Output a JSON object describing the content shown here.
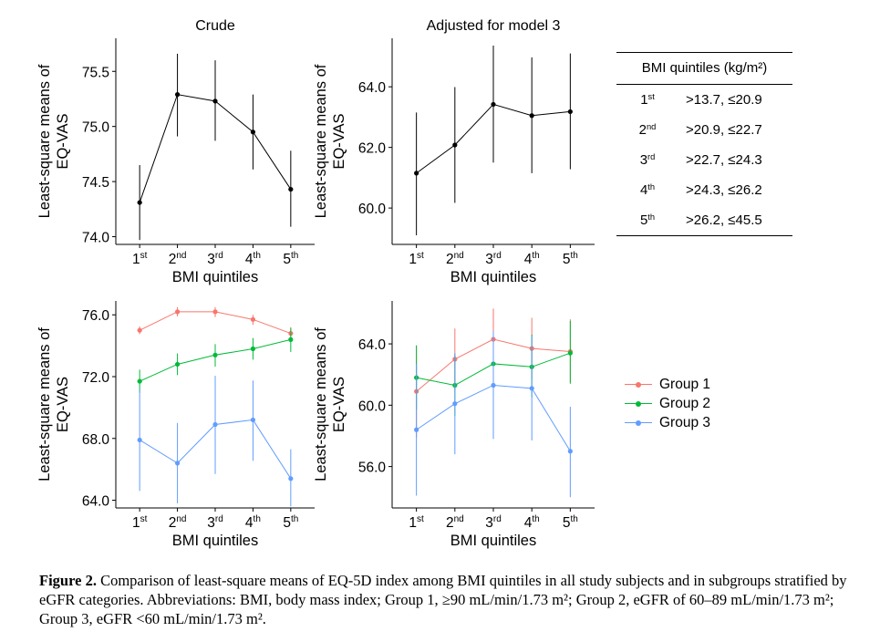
{
  "figure": {
    "caption_label": "Figure 2.",
    "caption_text": "Comparison of least-square means of EQ-5D index among BMI quintiles in all study subjects and in subgroups stratified by eGFR categories. Abbreviations: BMI, body mass index; Group 1, ≥90 mL/min/1.73 m²; Group 2, eGFR of 60–89 mL/min/1.73 m²; Group 3, eGFR <60 mL/min/1.73 m²."
  },
  "table": {
    "header": "BMI quintiles (kg/m²)",
    "rows": [
      {
        "q_num": "1",
        "q_sup": "st",
        "range": ">13.7, ≤20.9"
      },
      {
        "q_num": "2",
        "q_sup": "nd",
        "range": ">20.9, ≤22.7"
      },
      {
        "q_num": "3",
        "q_sup": "rd",
        "range": ">22.7, ≤24.3"
      },
      {
        "q_num": "4",
        "q_sup": "th",
        "range": ">24.3, ≤26.2"
      },
      {
        "q_num": "5",
        "q_sup": "th",
        "range": ">26.2, ≤45.5"
      }
    ]
  },
  "legend": [
    {
      "label": "Group 1",
      "color": "#f8766d"
    },
    {
      "label": "Group 2",
      "color": "#00ba38"
    },
    {
      "label": "Group 3",
      "color": "#619cff"
    }
  ],
  "chart_data": [
    {
      "type": "line",
      "title": "Crude",
      "xlabel": "BMI quintiles",
      "ylabel": "Least-square means of EQ-VAS",
      "categories": [
        {
          "num": "1",
          "sup": "st"
        },
        {
          "num": "2",
          "sup": "nd"
        },
        {
          "num": "3",
          "sup": "rd"
        },
        {
          "num": "4",
          "sup": "th"
        },
        {
          "num": "5",
          "sup": "th"
        }
      ],
      "yticks": [
        "74.0",
        "74.5",
        "75.0",
        "75.5"
      ],
      "ylim": [
        73.93,
        75.8
      ],
      "series": [
        {
          "color": "#000000",
          "values": [
            74.31,
            75.29,
            75.23,
            74.95,
            74.43
          ],
          "lower": [
            73.97,
            74.91,
            74.87,
            74.61,
            74.09
          ],
          "upper": [
            74.65,
            75.66,
            75.6,
            75.29,
            74.78
          ]
        }
      ]
    },
    {
      "type": "line",
      "title": "Adjusted for model 3",
      "xlabel": "BMI quintiles",
      "ylabel": "Least-square means of EQ-VAS",
      "categories": [
        {
          "num": "1",
          "sup": "st"
        },
        {
          "num": "2",
          "sup": "nd"
        },
        {
          "num": "3",
          "sup": "rd"
        },
        {
          "num": "4",
          "sup": "th"
        },
        {
          "num": "5",
          "sup": "th"
        }
      ],
      "yticks": [
        "60.0",
        "62.0",
        "64.0"
      ],
      "ylim": [
        58.8,
        65.6
      ],
      "series": [
        {
          "color": "#000000",
          "values": [
            61.15,
            62.08,
            63.42,
            63.05,
            63.18
          ],
          "lower": [
            59.1,
            60.17,
            61.5,
            61.15,
            61.28
          ],
          "upper": [
            63.15,
            63.99,
            65.36,
            64.97,
            65.1
          ]
        }
      ]
    },
    {
      "type": "line",
      "title": "",
      "xlabel": "BMI quintiles",
      "ylabel": "Least-square means of EQ-VAS",
      "categories": [
        {
          "num": "1",
          "sup": "st"
        },
        {
          "num": "2",
          "sup": "nd"
        },
        {
          "num": "3",
          "sup": "rd"
        },
        {
          "num": "4",
          "sup": "th"
        },
        {
          "num": "5",
          "sup": "th"
        }
      ],
      "yticks": [
        "64.0",
        "68.0",
        "72.0",
        "76.0"
      ],
      "ylim": [
        63.5,
        76.9
      ],
      "series": [
        {
          "name": "Group 1",
          "color": "#f8766d",
          "values": [
            75.0,
            76.2,
            76.2,
            75.7,
            74.8
          ],
          "lower": [
            74.75,
            75.9,
            75.85,
            75.35,
            74.4
          ],
          "upper": [
            75.25,
            76.5,
            76.5,
            76.0,
            75.2
          ]
        },
        {
          "name": "Group 2",
          "color": "#00ba38",
          "values": [
            71.7,
            72.8,
            73.4,
            73.8,
            74.4
          ],
          "lower": [
            70.95,
            72.1,
            72.65,
            73.1,
            73.6
          ],
          "upper": [
            72.45,
            73.5,
            74.1,
            74.5,
            75.15
          ]
        },
        {
          "name": "Group 3",
          "color": "#619cff",
          "values": [
            67.9,
            66.4,
            68.9,
            69.2,
            65.4
          ],
          "lower": [
            64.6,
            63.8,
            65.7,
            66.55,
            63.6
          ],
          "upper": [
            71.2,
            69.0,
            72.05,
            71.75,
            67.3
          ]
        }
      ]
    },
    {
      "type": "line",
      "title": "",
      "xlabel": "BMI quintiles",
      "ylabel": "Least-square means of EQ-VAS",
      "categories": [
        {
          "num": "1",
          "sup": "st"
        },
        {
          "num": "2",
          "sup": "nd"
        },
        {
          "num": "3",
          "sup": "rd"
        },
        {
          "num": "4",
          "sup": "th"
        },
        {
          "num": "5",
          "sup": "th"
        }
      ],
      "yticks": [
        "56.0",
        "60.0",
        "64.0"
      ],
      "ylim": [
        53.3,
        66.8
      ],
      "series": [
        {
          "name": "Group 1",
          "color": "#f8766d",
          "values": [
            60.9,
            63.0,
            64.3,
            63.7,
            63.5
          ],
          "lower": [
            57.9,
            61.0,
            62.3,
            61.7,
            61.5
          ],
          "upper": [
            63.9,
            65.0,
            66.3,
            65.7,
            65.6
          ]
        },
        {
          "name": "Group 2",
          "color": "#00ba38",
          "values": [
            61.8,
            61.3,
            62.7,
            62.5,
            63.4
          ],
          "lower": [
            59.7,
            59.3,
            60.6,
            60.5,
            61.4
          ],
          "upper": [
            63.9,
            63.3,
            64.8,
            64.6,
            65.5
          ]
        },
        {
          "name": "Group 3",
          "color": "#619cff",
          "values": [
            58.4,
            60.1,
            61.3,
            61.1,
            57.0
          ],
          "lower": [
            54.1,
            56.8,
            57.8,
            57.7,
            54.0
          ],
          "upper": [
            62.7,
            63.4,
            64.8,
            64.5,
            59.9
          ]
        }
      ]
    }
  ]
}
